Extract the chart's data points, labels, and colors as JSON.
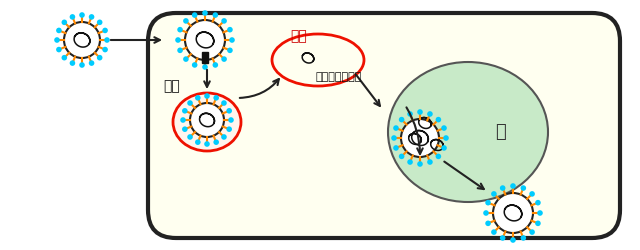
{
  "bg_color": "#ffffff",
  "cell_color": "#fffff0",
  "cell_border": "#222222",
  "nucleus_color": "#c8eac8",
  "nucleus_border": "#555555",
  "virus_spike_orange": "#ff8800",
  "virus_spike_cyan": "#00ccff",
  "label_shinyu": "侵入",
  "label_dakku": "脱殻",
  "label_genome": "ウイルスゲノム",
  "label_nucleus": "核"
}
